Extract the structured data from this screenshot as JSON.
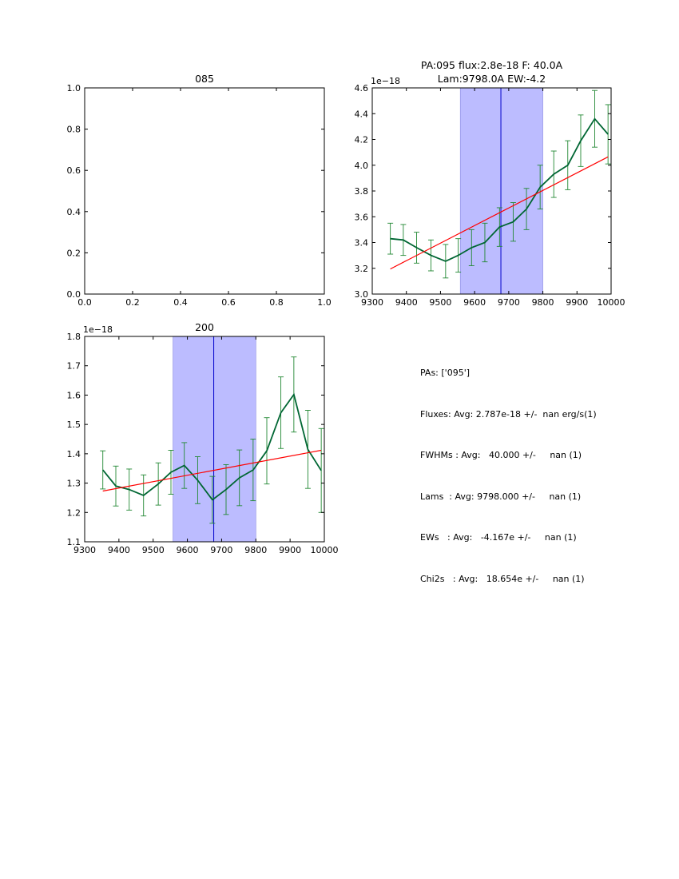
{
  "chart_data": [
    {
      "id": "panel-085",
      "type": "line",
      "title": "085",
      "empty": true,
      "xlim": [
        0.0,
        1.0
      ],
      "ylim": [
        0.0,
        1.0
      ],
      "xticks": [
        "0.0",
        "0.2",
        "0.4",
        "0.6",
        "0.8",
        "1.0"
      ],
      "yticks": [
        "0.0",
        "0.2",
        "0.4",
        "0.6",
        "0.8",
        "1.0"
      ]
    },
    {
      "id": "panel-095",
      "type": "line",
      "title_lines": [
        "PA:095 flux:2.8e-18 F: 40.0A",
        "Lam:9798.0A EW:-4.2"
      ],
      "offset_label": "1e−18",
      "xlim": [
        9300,
        10000
      ],
      "ylim": [
        3.0,
        4.6
      ],
      "xticks": [
        "9300",
        "9400",
        "9500",
        "9600",
        "9700",
        "9800",
        "9900",
        "10000"
      ],
      "yticks": [
        "3.0",
        "3.2",
        "3.4",
        "3.6",
        "3.8",
        "4.0",
        "4.2",
        "4.4",
        "4.6"
      ],
      "span": [
        9558,
        9800
      ],
      "vline": 9677,
      "series": [
        {
          "name": "data",
          "color": "#006633",
          "x": [
            9353,
            9391,
            9430,
            9472,
            9515,
            9552,
            9591,
            9630,
            9673,
            9713,
            9752,
            9792,
            9832,
            9873,
            9911,
            9952,
            9991
          ],
          "y": [
            3.43,
            3.42,
            3.36,
            3.3,
            3.255,
            3.3,
            3.36,
            3.4,
            3.52,
            3.56,
            3.66,
            3.83,
            3.93,
            4.0,
            4.19,
            4.36,
            4.24
          ],
          "err": [
            0.12,
            0.12,
            0.12,
            0.12,
            0.13,
            0.13,
            0.14,
            0.15,
            0.15,
            0.15,
            0.16,
            0.17,
            0.18,
            0.19,
            0.2,
            0.22,
            0.23
          ]
        },
        {
          "name": "fit",
          "color": "#ff0000",
          "x": [
            9353,
            9991
          ],
          "y": [
            3.195,
            4.065
          ]
        }
      ]
    },
    {
      "id": "panel-200",
      "type": "line",
      "title": "200",
      "offset_label": "1e−18",
      "xlim": [
        9300,
        10000
      ],
      "ylim": [
        1.1,
        1.8
      ],
      "xticks": [
        "9300",
        "9400",
        "9500",
        "9600",
        "9700",
        "9800",
        "9900",
        "10000"
      ],
      "yticks": [
        "1.1",
        "1.2",
        "1.3",
        "1.4",
        "1.5",
        "1.6",
        "1.7",
        "1.8"
      ],
      "span": [
        9558,
        9800
      ],
      "vline": 9677,
      "series": [
        {
          "name": "data",
          "color": "#006633",
          "x": [
            9353,
            9391,
            9430,
            9472,
            9515,
            9552,
            9591,
            9630,
            9673,
            9713,
            9752,
            9792,
            9832,
            9873,
            9911,
            9952,
            9991
          ],
          "y": [
            1.345,
            1.29,
            1.278,
            1.258,
            1.297,
            1.337,
            1.36,
            1.31,
            1.243,
            1.278,
            1.318,
            1.345,
            1.41,
            1.54,
            1.602,
            1.415,
            1.343
          ],
          "err": [
            0.065,
            0.068,
            0.07,
            0.07,
            0.072,
            0.075,
            0.078,
            0.08,
            0.08,
            0.085,
            0.095,
            0.105,
            0.113,
            0.122,
            0.128,
            0.133,
            0.143
          ]
        },
        {
          "name": "fit",
          "color": "#ff0000",
          "x": [
            9353,
            9991
          ],
          "y": [
            1.273,
            1.412
          ]
        }
      ]
    }
  ],
  "summary": {
    "pas": "PAs: ['095']",
    "fluxes": "Fluxes: Avg: 2.787e-18 +/-  nan erg/s(1)",
    "fwhms": "FWHMs : Avg:   40.000 +/-     nan (1)",
    "lams": "Lams  : Avg: 9798.000 +/-     nan (1)",
    "ews": "EWs   : Avg:   -4.167e +/-     nan (1)",
    "chi2s": "Chi2s   : Avg:   18.654e +/-     nan (1)"
  }
}
